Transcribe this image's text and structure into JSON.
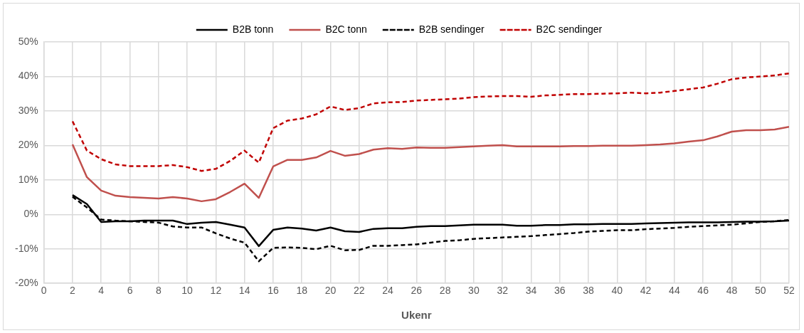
{
  "chart_data": {
    "type": "line",
    "xlabel": "Ukenr",
    "legend": "top",
    "grid": true,
    "x": [
      2,
      3,
      4,
      5,
      6,
      7,
      8,
      9,
      10,
      11,
      12,
      13,
      14,
      15,
      16,
      17,
      18,
      19,
      20,
      21,
      22,
      23,
      24,
      25,
      26,
      27,
      28,
      29,
      30,
      31,
      32,
      33,
      34,
      35,
      36,
      37,
      38,
      39,
      40,
      41,
      42,
      43,
      44,
      45,
      46,
      47,
      48,
      49,
      50,
      51,
      52
    ],
    "xlim": [
      0,
      52
    ],
    "xticks": [
      0,
      2,
      4,
      6,
      8,
      10,
      12,
      14,
      16,
      18,
      20,
      22,
      24,
      26,
      28,
      30,
      32,
      34,
      36,
      38,
      40,
      42,
      44,
      46,
      48,
      50,
      52
    ],
    "ylim": [
      -20,
      50
    ],
    "yticks": [
      {
        "value": -20,
        "label": "-20%"
      },
      {
        "value": -10,
        "label": "-10%"
      },
      {
        "value": 0,
        "label": "0%"
      },
      {
        "value": 10,
        "label": "10%"
      },
      {
        "value": 20,
        "label": "20%"
      },
      {
        "value": 30,
        "label": "30%"
      },
      {
        "value": 40,
        "label": "40%"
      },
      {
        "value": 50,
        "label": "50%"
      }
    ],
    "series": [
      {
        "name": "B2B tonn",
        "color": "#000000",
        "line_style": "solid",
        "values": [
          5.6,
          3,
          -2.2,
          -2,
          -2,
          -1.8,
          -1.8,
          -1.8,
          -2.8,
          -2.4,
          -2.2,
          -3,
          -3.8,
          -9.2,
          -4.5,
          -3.8,
          -4.1,
          -4.7,
          -3.8,
          -4.9,
          -5.1,
          -4.2,
          -4,
          -4,
          -3.6,
          -3.4,
          -3.4,
          -3.2,
          -3,
          -3,
          -3,
          -3.3,
          -3.3,
          -3.1,
          -3.1,
          -2.9,
          -2.9,
          -2.8,
          -2.8,
          -2.8,
          -2.6,
          -2.5,
          -2.4,
          -2.3,
          -2.3,
          -2.3,
          -2.2,
          -2.1,
          -2.1,
          -2,
          -1.8
        ]
      },
      {
        "name": "B2C tonn",
        "color": "#c0504d",
        "line_style": "solid",
        "values": [
          20.3,
          10.8,
          6.9,
          5.4,
          5,
          4.8,
          4.6,
          5,
          4.6,
          3.8,
          4.4,
          6.5,
          8.9,
          4.8,
          13.9,
          15.8,
          15.8,
          16.5,
          18.4,
          17,
          17.5,
          18.8,
          19.2,
          19,
          19.4,
          19.3,
          19.3,
          19.5,
          19.7,
          19.9,
          20.1,
          19.7,
          19.7,
          19.7,
          19.7,
          19.8,
          19.8,
          19.9,
          19.9,
          19.9,
          20.1,
          20.3,
          20.6,
          21.1,
          21.5,
          22.6,
          24,
          24.4,
          24.4,
          24.6,
          25.4
        ]
      },
      {
        "name": "B2B sendinger",
        "color": "#000000",
        "line_style": "dashed",
        "values": [
          5.1,
          2,
          -1.5,
          -1.8,
          -2,
          -2.2,
          -2.4,
          -3.5,
          -3.8,
          -3.8,
          -5.5,
          -7,
          -8.2,
          -13.6,
          -9.7,
          -9.6,
          -9.7,
          -10.1,
          -9.1,
          -10.4,
          -10.3,
          -9.1,
          -9.1,
          -8.9,
          -8.7,
          -8.2,
          -7.7,
          -7.5,
          -7.1,
          -6.9,
          -6.7,
          -6.5,
          -6.3,
          -6,
          -5.7,
          -5.4,
          -5,
          -4.8,
          -4.6,
          -4.6,
          -4.3,
          -4.1,
          -3.9,
          -3.6,
          -3.4,
          -3.2,
          -3,
          -2.6,
          -2.2,
          -2,
          -1.6
        ]
      },
      {
        "name": "B2C sendinger",
        "color": "#c00000",
        "line_style": "dashed",
        "values": [
          27,
          18.5,
          16,
          14.5,
          14,
          14,
          14,
          14.3,
          13.7,
          12.6,
          13.2,
          15.5,
          18.5,
          15,
          25,
          27.2,
          27.8,
          29,
          31.3,
          30.3,
          30.8,
          32.2,
          32.5,
          32.6,
          33,
          33.2,
          33.4,
          33.6,
          34,
          34.2,
          34.3,
          34.3,
          34.1,
          34.5,
          34.7,
          34.9,
          34.9,
          35,
          35.1,
          35.3,
          35.1,
          35.3,
          35.8,
          36.3,
          36.8,
          37.9,
          39.2,
          39.7,
          40,
          40.3,
          40.9
        ]
      }
    ]
  }
}
